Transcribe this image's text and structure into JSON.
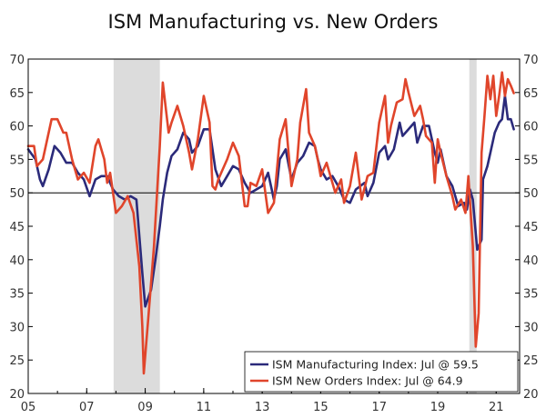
{
  "chart_data": {
    "type": "line",
    "title": "ISM Manufacturing vs. New Orders",
    "xlabel": "",
    "ylabel": "",
    "xlim": [
      2005.0,
      2021.8
    ],
    "ylim": [
      20,
      70
    ],
    "y_ticks": [
      20,
      25,
      30,
      35,
      40,
      45,
      50,
      55,
      60,
      65,
      70
    ],
    "x_ticks": [
      {
        "value": 2005,
        "label": "05"
      },
      {
        "value": 2007,
        "label": "07"
      },
      {
        "value": 2009,
        "label": "09"
      },
      {
        "value": 2011,
        "label": "11"
      },
      {
        "value": 2013,
        "label": "13"
      },
      {
        "value": 2015,
        "label": "15"
      },
      {
        "value": 2017,
        "label": "17"
      },
      {
        "value": 2019,
        "label": "19"
      },
      {
        "value": 2021,
        "label": "21"
      }
    ],
    "reference_line": 50,
    "recession_shading": [
      {
        "start": 2007.92,
        "end": 2009.5
      },
      {
        "start": 2020.08,
        "end": 2020.33
      }
    ],
    "legend_position": "bottom-right",
    "series": [
      {
        "name": "ISM Manufacturing Index: Jul @ 59.5",
        "color": "#2b2a7a",
        "points": [
          [
            2005.0,
            56.5
          ],
          [
            2005.25,
            55
          ],
          [
            2005.4,
            52
          ],
          [
            2005.5,
            51
          ],
          [
            2005.7,
            53.5
          ],
          [
            2005.9,
            57
          ],
          [
            2006.1,
            56
          ],
          [
            2006.3,
            54.5
          ],
          [
            2006.5,
            54.5
          ],
          [
            2006.7,
            53
          ],
          [
            2006.9,
            52
          ],
          [
            2007.1,
            49.5
          ],
          [
            2007.3,
            52
          ],
          [
            2007.5,
            52.5
          ],
          [
            2007.7,
            52.5
          ],
          [
            2007.9,
            50.5
          ],
          [
            2008.1,
            49.5
          ],
          [
            2008.3,
            49
          ],
          [
            2008.5,
            49.5
          ],
          [
            2008.7,
            49
          ],
          [
            2008.9,
            38
          ],
          [
            2009.0,
            33
          ],
          [
            2009.2,
            35.5
          ],
          [
            2009.35,
            40
          ],
          [
            2009.5,
            45
          ],
          [
            2009.6,
            49
          ],
          [
            2009.75,
            53
          ],
          [
            2009.9,
            55.5
          ],
          [
            2010.1,
            56.5
          ],
          [
            2010.3,
            59
          ],
          [
            2010.5,
            58
          ],
          [
            2010.6,
            56
          ],
          [
            2010.8,
            57
          ],
          [
            2011.0,
            59.5
          ],
          [
            2011.2,
            59.5
          ],
          [
            2011.4,
            53.5
          ],
          [
            2011.6,
            51
          ],
          [
            2011.8,
            52.5
          ],
          [
            2012.0,
            54
          ],
          [
            2012.2,
            53.5
          ],
          [
            2012.4,
            51.5
          ],
          [
            2012.6,
            50
          ],
          [
            2012.8,
            50.5
          ],
          [
            2013.0,
            51
          ],
          [
            2013.2,
            53
          ],
          [
            2013.3,
            51
          ],
          [
            2013.4,
            49
          ],
          [
            2013.5,
            51
          ],
          [
            2013.6,
            55
          ],
          [
            2013.8,
            56.5
          ],
          [
            2014.0,
            52
          ],
          [
            2014.2,
            54.5
          ],
          [
            2014.4,
            55.5
          ],
          [
            2014.6,
            57.5
          ],
          [
            2014.8,
            57
          ],
          [
            2014.9,
            55
          ],
          [
            2015.0,
            53.5
          ],
          [
            2015.2,
            52
          ],
          [
            2015.4,
            52.5
          ],
          [
            2015.6,
            51
          ],
          [
            2015.8,
            49
          ],
          [
            2016.0,
            48.5
          ],
          [
            2016.2,
            50.5
          ],
          [
            2016.5,
            51.5
          ],
          [
            2016.6,
            49.5
          ],
          [
            2016.8,
            51.5
          ],
          [
            2017.0,
            56
          ],
          [
            2017.2,
            57
          ],
          [
            2017.3,
            55
          ],
          [
            2017.5,
            56.5
          ],
          [
            2017.7,
            60.5
          ],
          [
            2017.8,
            58.5
          ],
          [
            2018.0,
            59.5
          ],
          [
            2018.2,
            60.5
          ],
          [
            2018.3,
            57.5
          ],
          [
            2018.5,
            60
          ],
          [
            2018.7,
            60
          ],
          [
            2018.8,
            58
          ],
          [
            2018.9,
            56
          ],
          [
            2019.0,
            54.5
          ],
          [
            2019.1,
            56.5
          ],
          [
            2019.3,
            52.5
          ],
          [
            2019.5,
            51
          ],
          [
            2019.7,
            48
          ],
          [
            2019.9,
            48.5
          ],
          [
            2020.0,
            47.5
          ],
          [
            2020.1,
            50.5
          ],
          [
            2020.2,
            49
          ],
          [
            2020.35,
            41.5
          ],
          [
            2020.5,
            43
          ],
          [
            2020.55,
            52
          ],
          [
            2020.7,
            54
          ],
          [
            2020.8,
            56
          ],
          [
            2020.95,
            59
          ],
          [
            2021.1,
            60.5
          ],
          [
            2021.2,
            61
          ],
          [
            2021.3,
            64.5
          ],
          [
            2021.4,
            61
          ],
          [
            2021.5,
            61
          ],
          [
            2021.6,
            59.5
          ]
        ]
      },
      {
        "name": "ISM New Orders Index: Jul @ 64.9",
        "color": "#e0452b",
        "points": [
          [
            2005.0,
            57
          ],
          [
            2005.2,
            57
          ],
          [
            2005.3,
            54
          ],
          [
            2005.5,
            55
          ],
          [
            2005.6,
            57
          ],
          [
            2005.8,
            61
          ],
          [
            2006.0,
            61
          ],
          [
            2006.2,
            59
          ],
          [
            2006.3,
            59
          ],
          [
            2006.5,
            55
          ],
          [
            2006.7,
            52
          ],
          [
            2006.9,
            53
          ],
          [
            2007.1,
            51.5
          ],
          [
            2007.3,
            57
          ],
          [
            2007.4,
            58
          ],
          [
            2007.6,
            55
          ],
          [
            2007.7,
            51.5
          ],
          [
            2007.8,
            53
          ],
          [
            2007.9,
            50
          ],
          [
            2008.0,
            47
          ],
          [
            2008.2,
            48
          ],
          [
            2008.4,
            49.5
          ],
          [
            2008.6,
            47
          ],
          [
            2008.8,
            39
          ],
          [
            2008.9,
            30
          ],
          [
            2008.95,
            23
          ],
          [
            2009.1,
            31
          ],
          [
            2009.3,
            42
          ],
          [
            2009.5,
            57
          ],
          [
            2009.6,
            66.5
          ],
          [
            2009.8,
            59
          ],
          [
            2009.9,
            60.5
          ],
          [
            2010.1,
            63
          ],
          [
            2010.3,
            60
          ],
          [
            2010.5,
            56
          ],
          [
            2010.6,
            53.5
          ],
          [
            2010.8,
            58
          ],
          [
            2011.0,
            64.5
          ],
          [
            2011.2,
            60.5
          ],
          [
            2011.3,
            51
          ],
          [
            2011.4,
            50.5
          ],
          [
            2011.5,
            52
          ],
          [
            2011.6,
            53
          ],
          [
            2011.8,
            55
          ],
          [
            2012.0,
            57.5
          ],
          [
            2012.2,
            55.5
          ],
          [
            2012.4,
            48
          ],
          [
            2012.5,
            48
          ],
          [
            2012.6,
            51.5
          ],
          [
            2012.8,
            51
          ],
          [
            2013.0,
            53.5
          ],
          [
            2013.2,
            47
          ],
          [
            2013.4,
            48.5
          ],
          [
            2013.6,
            58
          ],
          [
            2013.8,
            61
          ],
          [
            2014.0,
            51
          ],
          [
            2014.2,
            55
          ],
          [
            2014.3,
            60.5
          ],
          [
            2014.5,
            65.5
          ],
          [
            2014.6,
            59
          ],
          [
            2014.8,
            57
          ],
          [
            2014.9,
            55
          ],
          [
            2015.0,
            52.5
          ],
          [
            2015.2,
            54.5
          ],
          [
            2015.5,
            50
          ],
          [
            2015.7,
            52
          ],
          [
            2015.8,
            48.5
          ],
          [
            2016.0,
            51
          ],
          [
            2016.2,
            56
          ],
          [
            2016.4,
            49
          ],
          [
            2016.6,
            52.5
          ],
          [
            2016.8,
            53
          ],
          [
            2017.0,
            60.5
          ],
          [
            2017.2,
            64.5
          ],
          [
            2017.3,
            57.5
          ],
          [
            2017.4,
            60
          ],
          [
            2017.6,
            63.5
          ],
          [
            2017.8,
            64
          ],
          [
            2017.9,
            67
          ],
          [
            2018.0,
            65
          ],
          [
            2018.2,
            61.5
          ],
          [
            2018.4,
            63
          ],
          [
            2018.5,
            61
          ],
          [
            2018.6,
            58.5
          ],
          [
            2018.8,
            57.5
          ],
          [
            2018.9,
            51.5
          ],
          [
            2019.0,
            58
          ],
          [
            2019.1,
            56
          ],
          [
            2019.3,
            52.5
          ],
          [
            2019.5,
            49.5
          ],
          [
            2019.6,
            47.5
          ],
          [
            2019.8,
            49
          ],
          [
            2019.95,
            47
          ],
          [
            2020.05,
            52.5
          ],
          [
            2020.2,
            42
          ],
          [
            2020.3,
            27
          ],
          [
            2020.4,
            32
          ],
          [
            2020.5,
            56
          ],
          [
            2020.6,
            61.5
          ],
          [
            2020.7,
            67.5
          ],
          [
            2020.8,
            64
          ],
          [
            2020.9,
            67.5
          ],
          [
            2021.0,
            61.5
          ],
          [
            2021.1,
            64.5
          ],
          [
            2021.2,
            68
          ],
          [
            2021.3,
            64.5
          ],
          [
            2021.4,
            67
          ],
          [
            2021.5,
            66
          ],
          [
            2021.6,
            64.9
          ]
        ]
      }
    ]
  }
}
